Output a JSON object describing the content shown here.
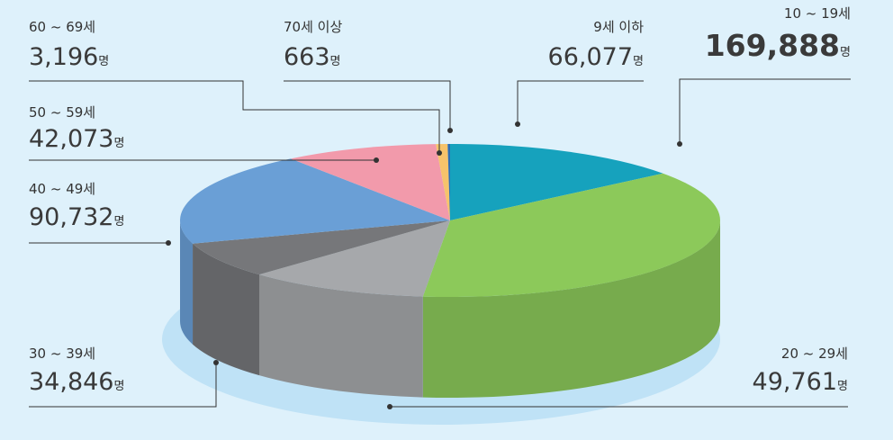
{
  "chart_data": {
    "type": "pie",
    "unit": "명",
    "categories": [
      "9세 이하",
      "10 ~ 19세",
      "20 ~ 29세",
      "30 ~ 39세",
      "40 ~ 49세",
      "50 ~ 59세",
      "60 ~ 69세",
      "70세 이상"
    ],
    "values": [
      66077,
      169888,
      49761,
      34846,
      90732,
      42073,
      3196,
      663
    ],
    "value_labels": [
      "66,077",
      "169,888",
      "49,761",
      "34,846",
      "90,732",
      "42,073",
      "3,196",
      "663"
    ],
    "colors": [
      "#16a2bd",
      "#8cc95a",
      "#a6a8ab",
      "#76777a",
      "#6a9fd6",
      "#f29aab",
      "#f6c36b",
      "#2a6fb6"
    ]
  }
}
